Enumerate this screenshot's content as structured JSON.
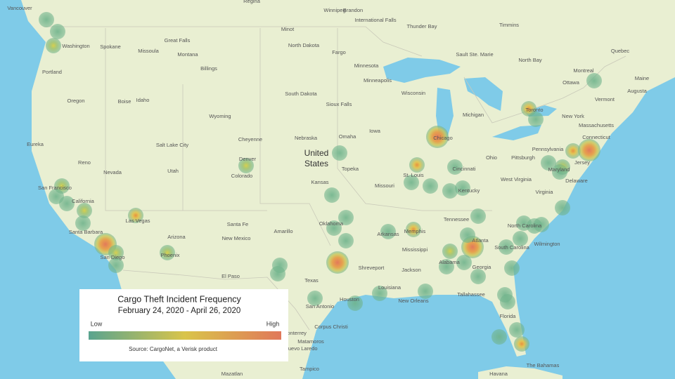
{
  "legend": {
    "title": "Cargo Theft  Incident Frequency",
    "subtitle": "February 24, 2020 - April 26, 2020",
    "low": "Low",
    "high": "High",
    "source": "Source: CargoNet, a Verisk product"
  },
  "map_labels": [
    "United",
    "States",
    "Vancouver",
    "Washington",
    "Spokane",
    "Portland",
    "Oregon",
    "Boise",
    "Idaho",
    "Missoula",
    "Great Falls",
    "Montana",
    "Billings",
    "Wyoming",
    "Cheyenne",
    "Eureka",
    "Reno",
    "Salt Lake City",
    "Utah",
    "Nevada",
    "San Francisco",
    "California",
    "Las Vegas",
    "Santa Barbara",
    "San Diego",
    "Arizona",
    "Phoenix",
    "Denver",
    "Colorado",
    "Santa Fe",
    "New Mexico",
    "Amarillo",
    "El Paso",
    "Minot",
    "North Dakota",
    "Fargo",
    "South Dakota",
    "Sioux Falls",
    "Nebraska",
    "Omaha",
    "Kansas",
    "Topeka",
    "Oklahoma",
    "Texas",
    "San Antonio",
    "Houston",
    "Corpus Christi",
    "Minnesota",
    "Minneapolis",
    "Iowa",
    "Missouri",
    "St. Louis",
    "Arkansas",
    "Memphis",
    "Shreveport",
    "Louisiana",
    "New Orleans",
    "Jackson",
    "Mississippi",
    "Wisconsin",
    "Chicago",
    "Michigan",
    "Ohio",
    "Cincinnati",
    "Kentucky",
    "Tennessee",
    "Alabama",
    "Atlanta",
    "Georgia",
    "Tallahassee",
    "Florida",
    "North Carolina",
    "South Carolina",
    "Wilmington",
    "Virginia",
    "West Virginia",
    "Pittsburgh",
    "Pennsylvania",
    "New York",
    "Toronto",
    "Ottawa",
    "Montreal",
    "Quebec",
    "Augusta",
    "Maine",
    "Vermont",
    "Massachusetts",
    "Connecticut",
    "Jersey",
    "Delaware",
    "Maryland",
    "Brandon",
    "Winnipeg",
    "Thunder Bay",
    "International Falls",
    "Sault Ste. Marie",
    "North Bay",
    "Timmins",
    "Regina",
    "Monterrey",
    "Nuevo Laredo",
    "Matamoros",
    "Tampico",
    "Mazatlan",
    "Havana",
    "The Bahamas"
  ]
}
